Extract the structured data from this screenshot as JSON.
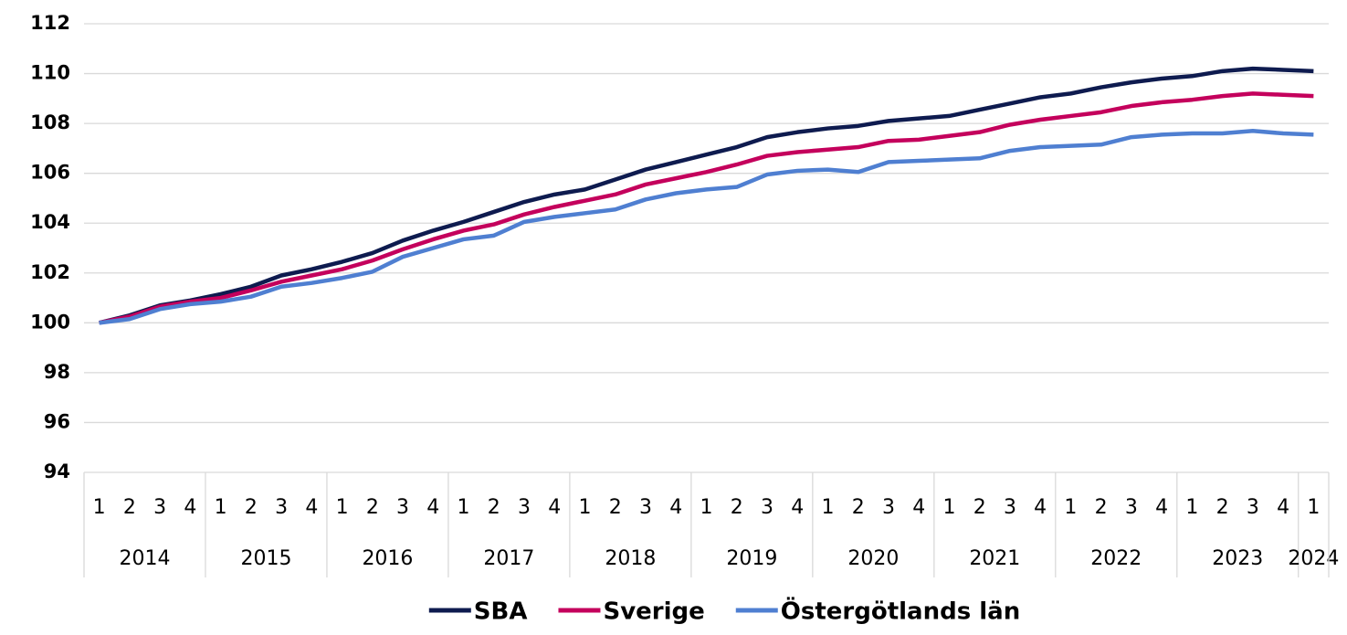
{
  "chart_data": {
    "type": "line",
    "categories": [
      "1",
      "2",
      "3",
      "4",
      "1",
      "2",
      "3",
      "4",
      "1",
      "2",
      "3",
      "4",
      "1",
      "2",
      "3",
      "4",
      "1",
      "2",
      "3",
      "4",
      "1",
      "2",
      "3",
      "4",
      "1",
      "2",
      "3",
      "4",
      "1",
      "2",
      "3",
      "4",
      "1",
      "2",
      "3",
      "4",
      "1",
      "2",
      "3",
      "4",
      "1"
    ],
    "x_groups": [
      {
        "label": "2014",
        "count": 4
      },
      {
        "label": "2015",
        "count": 4
      },
      {
        "label": "2016",
        "count": 4
      },
      {
        "label": "2017",
        "count": 4
      },
      {
        "label": "2018",
        "count": 4
      },
      {
        "label": "2019",
        "count": 4
      },
      {
        "label": "2020",
        "count": 4
      },
      {
        "label": "2021",
        "count": 4
      },
      {
        "label": "2022",
        "count": 4
      },
      {
        "label": "2023",
        "count": 4
      },
      {
        "label": "2024",
        "count": 1
      }
    ],
    "series": [
      {
        "name": "SBA",
        "color": "#0e1b4f",
        "values": [
          100,
          100.3,
          100.7,
          100.9,
          101.15,
          101.45,
          101.9,
          102.15,
          102.45,
          102.8,
          103.3,
          103.7,
          104.05,
          104.45,
          104.85,
          105.15,
          105.35,
          105.75,
          106.15,
          106.45,
          106.75,
          107.05,
          107.45,
          107.65,
          107.8,
          107.9,
          108.1,
          108.2,
          108.3,
          108.55,
          108.8,
          109.05,
          109.2,
          109.45,
          109.65,
          109.8,
          109.9,
          110.1,
          110.2,
          110.15,
          110.1
        ]
      },
      {
        "name": "Sverige",
        "color": "#c4005c",
        "values": [
          100,
          100.25,
          100.65,
          100.85,
          101.0,
          101.3,
          101.65,
          101.9,
          102.15,
          102.5,
          102.95,
          103.35,
          103.7,
          103.95,
          104.35,
          104.65,
          104.9,
          105.15,
          105.55,
          105.8,
          106.05,
          106.35,
          106.7,
          106.85,
          106.95,
          107.05,
          107.3,
          107.35,
          107.5,
          107.65,
          107.95,
          108.15,
          108.3,
          108.45,
          108.7,
          108.85,
          108.95,
          109.1,
          109.2,
          109.15,
          109.1
        ]
      },
      {
        "name": "Östergötlands län",
        "color": "#4f7fd1",
        "values": [
          100,
          100.15,
          100.55,
          100.75,
          100.85,
          101.05,
          101.45,
          101.6,
          101.8,
          102.05,
          102.65,
          103.0,
          103.35,
          103.5,
          104.05,
          104.25,
          104.4,
          104.55,
          104.95,
          105.2,
          105.35,
          105.45,
          105.95,
          106.1,
          106.15,
          106.05,
          106.45,
          106.5,
          106.55,
          106.6,
          106.9,
          107.05,
          107.1,
          107.15,
          107.45,
          107.55,
          107.6,
          107.6,
          107.7,
          107.6,
          107.55
        ]
      }
    ],
    "ylim": [
      94,
      112
    ],
    "yticks": [
      94,
      96,
      98,
      100,
      102,
      104,
      106,
      108,
      110,
      112
    ],
    "grid": true,
    "legend": "bottom"
  }
}
